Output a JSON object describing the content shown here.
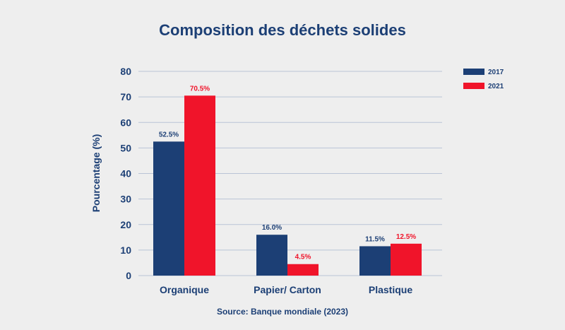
{
  "chart_data": {
    "type": "bar",
    "title": "Composition des déchets solides",
    "ylabel": "Pourcentage (%)",
    "xlabel": "",
    "categories": [
      "Organique",
      "Papier/ Carton",
      "Plastique"
    ],
    "ylim": [
      0,
      80
    ],
    "yticks": [
      0,
      10,
      20,
      30,
      40,
      50,
      60,
      70,
      80
    ],
    "grid": true,
    "legend_position": "top-right",
    "series": [
      {
        "name": "2017",
        "color": "#1c3f75",
        "values": [
          52.5,
          16.0,
          11.5
        ],
        "labels": [
          "52.5%",
          "16.0%",
          "11.5%"
        ]
      },
      {
        "name": "2021",
        "color": "#f0142a",
        "values": [
          70.5,
          4.5,
          12.5
        ],
        "labels": [
          "70.5%",
          "4.5%",
          "12.5%"
        ]
      }
    ],
    "source": "Source: Banque mondiale (2023)"
  }
}
